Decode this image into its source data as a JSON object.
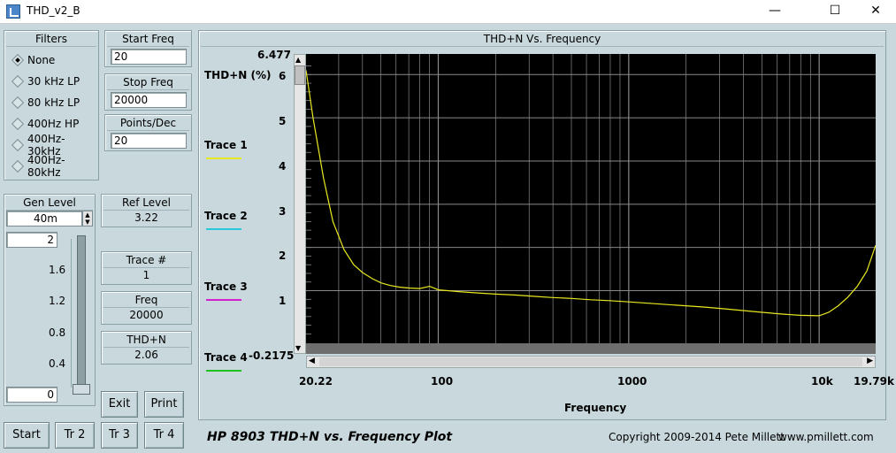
{
  "window": {
    "title": "THD_v2_B",
    "minimize": "—",
    "maximize": "☐",
    "close": "✕"
  },
  "filters": {
    "title": "Filters",
    "selected": "None",
    "options": [
      "None",
      "30 kHz LP",
      "80 kHz LP",
      "400Hz HP",
      "400Hz-30kHz",
      "400Hz-80kHz"
    ]
  },
  "start_freq": {
    "label": "Start Freq",
    "value": "20"
  },
  "stop_freq": {
    "label": "Stop Freq",
    "value": "20000"
  },
  "points_dec": {
    "label": "Points/Dec",
    "value": "20"
  },
  "gen_level": {
    "label": "Gen Level",
    "value": "40m",
    "slider_max": "2",
    "slider_min": "0",
    "scale": [
      "1.6",
      "1.2",
      "0.8",
      "0.4"
    ],
    "level": 0.0
  },
  "ref_level": {
    "label": "Ref Level",
    "value": "3.22"
  },
  "trace_num": {
    "label": "Trace #",
    "value": "1"
  },
  "freq": {
    "label": "Freq",
    "value": "20000"
  },
  "thdn": {
    "label": "THD+N",
    "value": "2.06"
  },
  "buttons": {
    "exit": "Exit",
    "print": "Print",
    "start": "Start",
    "tr2": "Tr 2",
    "tr3": "Tr 3",
    "tr4": "Tr 4"
  },
  "plot": {
    "title": "THD+N Vs. Frequency",
    "footer_title": "HP 8903 THD+N vs. Frequency Plot",
    "copyright": "Copyright 2009-2014 Pete Millett",
    "website": "www.pmillett.com"
  },
  "colors": {
    "trace1": "#e8e820",
    "trace2": "#28c8d8",
    "trace3": "#d020d0",
    "trace4": "#20c020",
    "grid": "#8a8a8a",
    "bg": "#000000"
  },
  "traces": [
    {
      "label": "Trace 1"
    },
    {
      "label": "Trace 2"
    },
    {
      "label": "Trace 3"
    },
    {
      "label": "Trace 4"
    }
  ],
  "chart_data": {
    "type": "line",
    "title": "THD+N Vs. Frequency",
    "xlabel": "Frequency",
    "ylabel": "THD+N (%)",
    "xscale": "log",
    "xlim": [
      20.22,
      19790
    ],
    "ylim": [
      -0.2175,
      6.477
    ],
    "x_tick_labels": [
      "20.22",
      "100",
      "1000",
      "10k",
      "19.79k"
    ],
    "y_tick_labels": [
      "6.477",
      "6",
      "5",
      "4",
      "3",
      "2",
      "1",
      "-0.2175"
    ],
    "grid": true,
    "series": [
      {
        "name": "Trace 1",
        "x": [
          20.22,
          22,
          25,
          28,
          32,
          36,
          40,
          45,
          50,
          56,
          63,
          71,
          80,
          86,
          90,
          95,
          100,
          126,
          158,
          200,
          251,
          316,
          398,
          501,
          631,
          794,
          1000,
          1259,
          1585,
          1995,
          2512,
          3162,
          3981,
          5012,
          6310,
          7943,
          10000,
          11220,
          12589,
          14125,
          15849,
          17783,
          19790
        ],
        "values": [
          6.1,
          5.0,
          3.6,
          2.6,
          1.95,
          1.6,
          1.42,
          1.28,
          1.18,
          1.12,
          1.08,
          1.06,
          1.05,
          1.08,
          1.1,
          1.06,
          1.02,
          0.98,
          0.95,
          0.92,
          0.9,
          0.87,
          0.84,
          0.82,
          0.79,
          0.77,
          0.74,
          0.71,
          0.68,
          0.65,
          0.62,
          0.58,
          0.54,
          0.5,
          0.46,
          0.43,
          0.42,
          0.5,
          0.65,
          0.85,
          1.1,
          1.45,
          2.05
        ]
      }
    ]
  }
}
